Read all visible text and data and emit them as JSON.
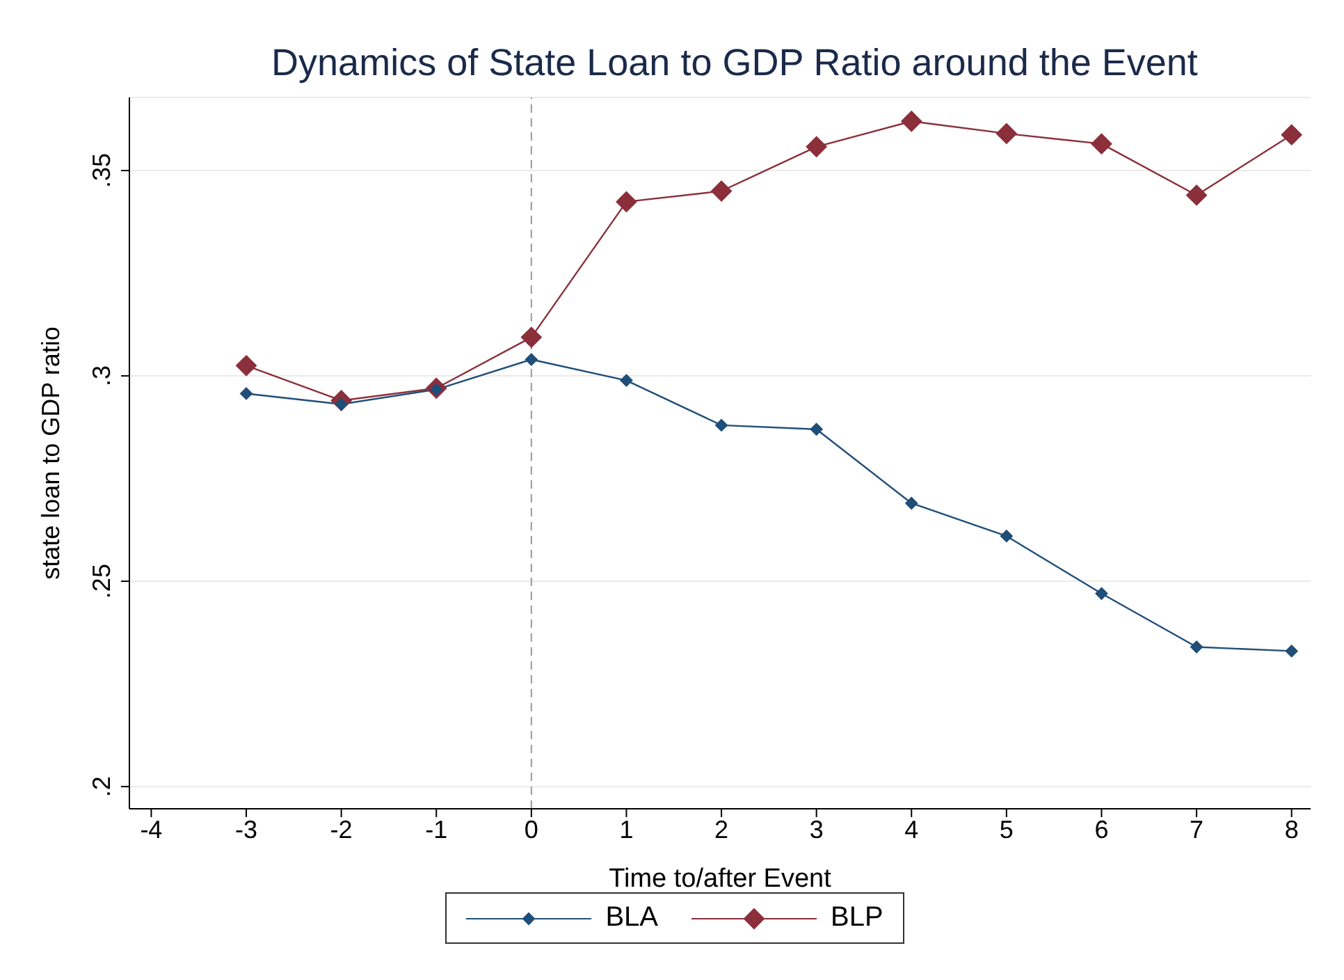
{
  "chart_data": {
    "type": "line",
    "title": "Dynamics of State Loan to GDP Ratio around the Event",
    "xlabel": "Time to/after Event",
    "ylabel": "state loan to GDP ratio",
    "x": [
      -3,
      -2,
      -1,
      0,
      1,
      2,
      3,
      4,
      5,
      6,
      7,
      8
    ],
    "series": [
      {
        "name": "BLA",
        "color": "#1f4e79",
        "values": [
          0.2957,
          0.2931,
          0.2967,
          0.304,
          0.2989,
          0.288,
          0.287,
          0.269,
          0.261,
          0.247,
          0.234,
          0.233
        ]
      },
      {
        "name": "BLP",
        "color": "#8b2f3a",
        "values": [
          0.3025,
          0.294,
          0.297,
          0.3094,
          0.3424,
          0.345,
          0.3558,
          0.362,
          0.359,
          0.3565,
          0.344,
          0.3587
        ]
      }
    ],
    "xlim": [
      -4.23,
      8.2
    ],
    "xticks": [
      -4,
      -3,
      -2,
      -1,
      0,
      1,
      2,
      3,
      4,
      5,
      6,
      7,
      8
    ],
    "ylim": [
      0.1946,
      0.3678
    ],
    "yticks": [
      {
        "value": 0.2,
        "label": ".2"
      },
      {
        "value": 0.25,
        "label": ".25"
      },
      {
        "value": 0.3,
        "label": ".3"
      },
      {
        "value": 0.35,
        "label": ".35"
      }
    ],
    "ref_lines": [
      {
        "axis": "x",
        "value": 0,
        "color": "#999999",
        "line_style": "dashed"
      }
    ],
    "grid": "y",
    "legend": "bottom",
    "marker": "diamond",
    "line_style": "solid"
  }
}
